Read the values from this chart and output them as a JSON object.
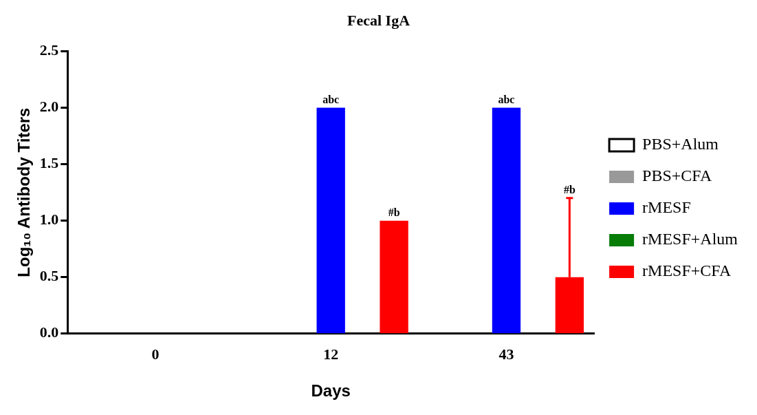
{
  "chart_data": {
    "type": "bar",
    "title": "Fecal IgA",
    "xlabel": "Days",
    "ylabel": "Log₁₀ Antibody Titers",
    "categories": [
      "0",
      "12",
      "43"
    ],
    "series": [
      {
        "name": "PBS+Alum",
        "color": "#ffffff",
        "values": [
          0,
          0,
          0
        ]
      },
      {
        "name": "PBS+CFA",
        "color": "#999999",
        "values": [
          0,
          0,
          0
        ]
      },
      {
        "name": "rMESF",
        "color": "#0000ff",
        "values": [
          0,
          2,
          2
        ],
        "value_labels": [
          null,
          "abc",
          "abc"
        ]
      },
      {
        "name": "rMESF+Alum",
        "color": "#077c07",
        "values": [
          0,
          0,
          0
        ]
      },
      {
        "name": "rMESF+CFA",
        "color": "#ff0000",
        "values": [
          0,
          1,
          0.5
        ],
        "errors": [
          null,
          null,
          [
            0.5,
            1.2
          ]
        ],
        "value_labels": [
          null,
          "#b",
          null
        ]
      }
    ],
    "annotations": [
      "#b"
    ],
    "ylim": [
      0,
      2.5
    ],
    "yticks": [
      {
        "value": 0,
        "label": "0.0"
      },
      {
        "value": 0.5,
        "label": "0.5"
      },
      {
        "value": 1,
        "label": "1.0"
      },
      {
        "value": 1.5,
        "label": "1.5"
      },
      {
        "value": 2,
        "label": "2.0"
      },
      {
        "value": 2.5,
        "label": "2.5"
      }
    ],
    "grid": false,
    "legend": "right"
  }
}
